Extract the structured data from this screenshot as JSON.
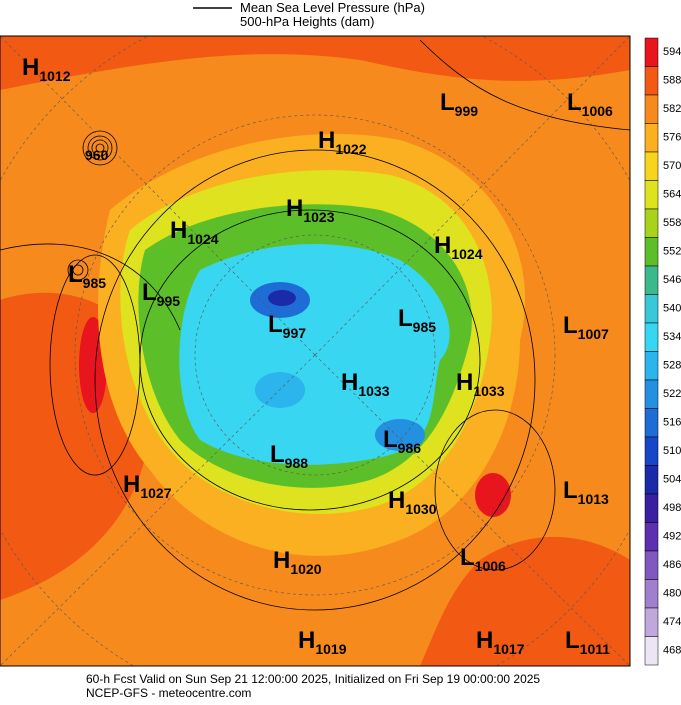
{
  "legend": {
    "line_label": "Mean Sea Level Pressure (hPa)",
    "fill_label": "500-hPa Heights (dam)"
  },
  "centers": [
    {
      "letter": "H",
      "value": "1012"
    },
    {
      "letter": "L",
      "value": "999"
    },
    {
      "letter": "L",
      "value": "1006"
    },
    {
      "value": "960"
    },
    {
      "letter": "H",
      "value": "1022"
    },
    {
      "letter": "H",
      "value": "1023"
    },
    {
      "letter": "H",
      "value": "1024"
    },
    {
      "letter": "H",
      "value": "1024"
    },
    {
      "letter": "L",
      "value": "985"
    },
    {
      "letter": "L",
      "value": "995"
    },
    {
      "letter": "L",
      "value": "997"
    },
    {
      "letter": "L",
      "value": "985"
    },
    {
      "letter": "L",
      "value": "1007"
    },
    {
      "letter": "H",
      "value": "1033"
    },
    {
      "letter": "H",
      "value": "1033"
    },
    {
      "letter": "L",
      "value": "986"
    },
    {
      "letter": "L",
      "value": "988"
    },
    {
      "letter": "H",
      "value": "1027"
    },
    {
      "letter": "L",
      "value": "1013"
    },
    {
      "letter": "H",
      "value": "1030"
    },
    {
      "letter": "H",
      "value": "1020"
    },
    {
      "letter": "L",
      "value": "1006"
    },
    {
      "letter": "H",
      "value": "1019"
    },
    {
      "letter": "H",
      "value": "1017"
    },
    {
      "letter": "L",
      "value": "1011"
    }
  ],
  "colorbar": [
    {
      "label": "594",
      "color": "#e8141e"
    },
    {
      "label": "588",
      "color": "#f25a14"
    },
    {
      "label": "582",
      "color": "#f78a1c"
    },
    {
      "label": "576",
      "color": "#fbb021"
    },
    {
      "label": "570",
      "color": "#f7d41e"
    },
    {
      "label": "564",
      "color": "#dfe21e"
    },
    {
      "label": "558",
      "color": "#a8d31a"
    },
    {
      "label": "552",
      "color": "#5cbf2a"
    },
    {
      "label": "546",
      "color": "#3cb98c"
    },
    {
      "label": "540",
      "color": "#38c8d8"
    },
    {
      "label": "534",
      "color": "#38d6f0"
    },
    {
      "label": "528",
      "color": "#2cb4ec"
    },
    {
      "label": "522",
      "color": "#2490e0"
    },
    {
      "label": "516",
      "color": "#1e6cd6"
    },
    {
      "label": "510",
      "color": "#1846c8"
    },
    {
      "label": "504",
      "color": "#1a2aa8"
    },
    {
      "label": "498",
      "color": "#3a1fa0"
    },
    {
      "label": "492",
      "color": "#5e30b0"
    },
    {
      "label": "486",
      "color": "#8058c0"
    },
    {
      "label": "480",
      "color": "#a080cc"
    },
    {
      "label": "474",
      "color": "#c0a8dc"
    },
    {
      "label": "468",
      "color": "#ece6f4"
    }
  ],
  "footer": {
    "line1": "60-h Fcst Valid on Sun Sep 21 12:00:00 2025, Initialized on Fri Sep 19 00:00:00 2025",
    "line2": "NCEP-GFS  - meteocentre.com"
  }
}
